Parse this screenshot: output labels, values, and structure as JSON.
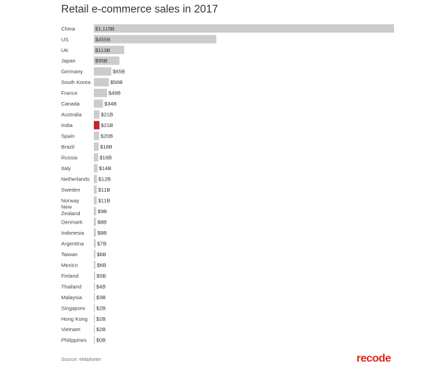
{
  "chart_data": {
    "type": "bar",
    "orientation": "horizontal",
    "title": "Retail e-commerce sales in 2017",
    "xlabel": "",
    "ylabel": "",
    "unit": "billion USD",
    "categories": [
      "China",
      "US",
      "UK",
      "Japan",
      "Germany",
      "South Korea",
      "France",
      "Canada",
      "Australia",
      "India",
      "Spain",
      "Brazil",
      "Russia",
      "Italy",
      "Netherlands",
      "Sweden",
      "Norway",
      "New Zealand",
      "Denmark",
      "Indonesia",
      "Argentina",
      "Taiwan",
      "Mexico",
      "Finland",
      "Thailand",
      "Malaysia",
      "Singapore",
      "Hong Kong",
      "Vietnam",
      "Philippines"
    ],
    "values": [
      1115,
      455,
      113,
      95,
      65,
      56,
      49,
      34,
      21,
      21,
      20,
      18,
      16,
      14,
      12,
      11,
      11,
      9,
      8,
      8,
      7,
      6,
      6,
      5,
      4,
      3,
      2,
      2,
      2,
      0
    ],
    "value_labels": [
      "$1,115B",
      "$455B",
      "$113B",
      "$95B",
      "$65B",
      "$56B",
      "$49B",
      "$34B",
      "$21B",
      "$21B",
      "$20B",
      "$18B",
      "$16B",
      "$14B",
      "$12B",
      "$11B",
      "$11B",
      "$9B",
      "$8B",
      "$8B",
      "$7B",
      "$6B",
      "$6B",
      "$5B",
      "$4B",
      "$3B",
      "$2B",
      "$2B",
      "$2B",
      "$0B"
    ],
    "highlight": "India",
    "colors": {
      "bar": "#cccccc",
      "highlight": "#c0272d"
    },
    "grid": false,
    "legend": "none"
  },
  "source": "Source: eMarketer",
  "logo": {
    "text": "recode",
    "color": "#e1251b"
  }
}
